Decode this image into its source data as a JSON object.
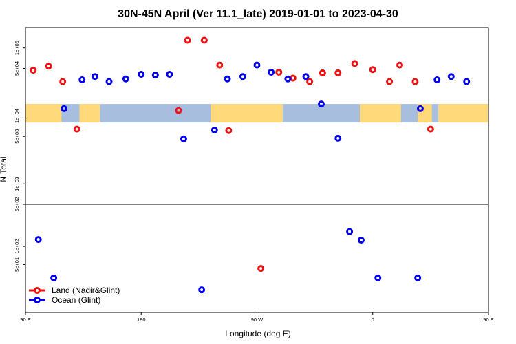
{
  "chart_data": {
    "type": "scatter",
    "title": "30N-45N April (Ver 11.1_late)   2019-01-01 to 2023-04-30",
    "xlabel": "Longitude (deg E)",
    "ylabel": "N Total",
    "xlim": [
      90,
      450
    ],
    "x_ticks": [
      {
        "value": 90,
        "label": "90 E"
      },
      {
        "value": 180,
        "label": "180"
      },
      {
        "value": 270,
        "label": "90 W"
      },
      {
        "value": 360,
        "label": "0"
      },
      {
        "value": 450,
        "label": "90 E"
      },
      {
        "value": 540,
        "label": "180"
      }
    ],
    "x_tick_scale": 0.5,
    "y_ticks": [
      {
        "value": 100000,
        "label": "1e+05"
      },
      {
        "value": 50000,
        "label": "5e+04"
      },
      {
        "value": 10000,
        "label": "1e+04"
      },
      {
        "value": 5000,
        "label": "5e+03"
      },
      {
        "value": 1000,
        "label": "1e+03"
      },
      {
        "value": 500,
        "label": "5e+02"
      },
      {
        "value": 100,
        "label": "1e+02"
      },
      {
        "value": 50,
        "label": "5e+01"
      }
    ],
    "panels": [
      {
        "name": "upper",
        "ylim": [
          500,
          200000
        ]
      },
      {
        "name": "lower",
        "ylim": [
          8,
          500
        ]
      }
    ],
    "map_band": {
      "y_range": [
        8000,
        15000
      ],
      "land_color": "#ffd97a",
      "ocean_color": "#a8bedf"
    },
    "legend": {
      "position": "bottom-left"
    },
    "grid": false,
    "series": [
      {
        "name": "Land (Nadir&Glint)",
        "color": "#ee1111",
        "points": [
          {
            "x": 96,
            "y": 47000
          },
          {
            "x": 108,
            "y": 54000
          },
          {
            "x": 119,
            "y": 32000
          },
          {
            "x": 130,
            "y": 6400
          },
          {
            "x": 209,
            "y": 12000
          },
          {
            "x": 216,
            "y": 130000
          },
          {
            "x": 229,
            "y": 130000
          },
          {
            "x": 241,
            "y": 56000
          },
          {
            "x": 248,
            "y": 6100
          },
          {
            "x": 287,
            "y": 44000
          },
          {
            "x": 298,
            "y": 36000
          },
          {
            "x": 311,
            "y": 32000
          },
          {
            "x": 321,
            "y": 43000
          },
          {
            "x": 333,
            "y": 43000
          },
          {
            "x": 346,
            "y": 59000
          },
          {
            "x": 360,
            "y": 48000
          },
          {
            "x": 373,
            "y": 32000
          },
          {
            "x": 381,
            "y": 56000
          },
          {
            "x": 393,
            "y": 32000
          },
          {
            "x": 405,
            "y": 6400
          },
          {
            "x": 273,
            "y": 43
          }
        ]
      },
      {
        "name": "Ocean (Glint)",
        "color": "#0000ee",
        "points": [
          {
            "x": 120,
            "y": 12800
          },
          {
            "x": 134,
            "y": 34000
          },
          {
            "x": 144,
            "y": 38000
          },
          {
            "x": 155,
            "y": 32000
          },
          {
            "x": 168,
            "y": 35000
          },
          {
            "x": 180,
            "y": 41000
          },
          {
            "x": 191,
            "y": 40000
          },
          {
            "x": 202,
            "y": 41000
          },
          {
            "x": 213,
            "y": 4600
          },
          {
            "x": 237,
            "y": 6200
          },
          {
            "x": 247,
            "y": 35000
          },
          {
            "x": 259,
            "y": 38000
          },
          {
            "x": 270,
            "y": 56000
          },
          {
            "x": 281,
            "y": 44000
          },
          {
            "x": 294,
            "y": 35000
          },
          {
            "x": 308,
            "y": 38000
          },
          {
            "x": 320,
            "y": 15000
          },
          {
            "x": 333,
            "y": 4700
          },
          {
            "x": 397,
            "y": 12800
          },
          {
            "x": 410,
            "y": 34000
          },
          {
            "x": 421,
            "y": 38000
          },
          {
            "x": 433,
            "y": 32000
          },
          {
            "x": 100,
            "y": 130
          },
          {
            "x": 112,
            "y": 30
          },
          {
            "x": 227,
            "y": 19
          },
          {
            "x": 342,
            "y": 176
          },
          {
            "x": 351,
            "y": 127
          },
          {
            "x": 364,
            "y": 30
          },
          {
            "x": 395,
            "y": 30
          }
        ]
      }
    ]
  }
}
